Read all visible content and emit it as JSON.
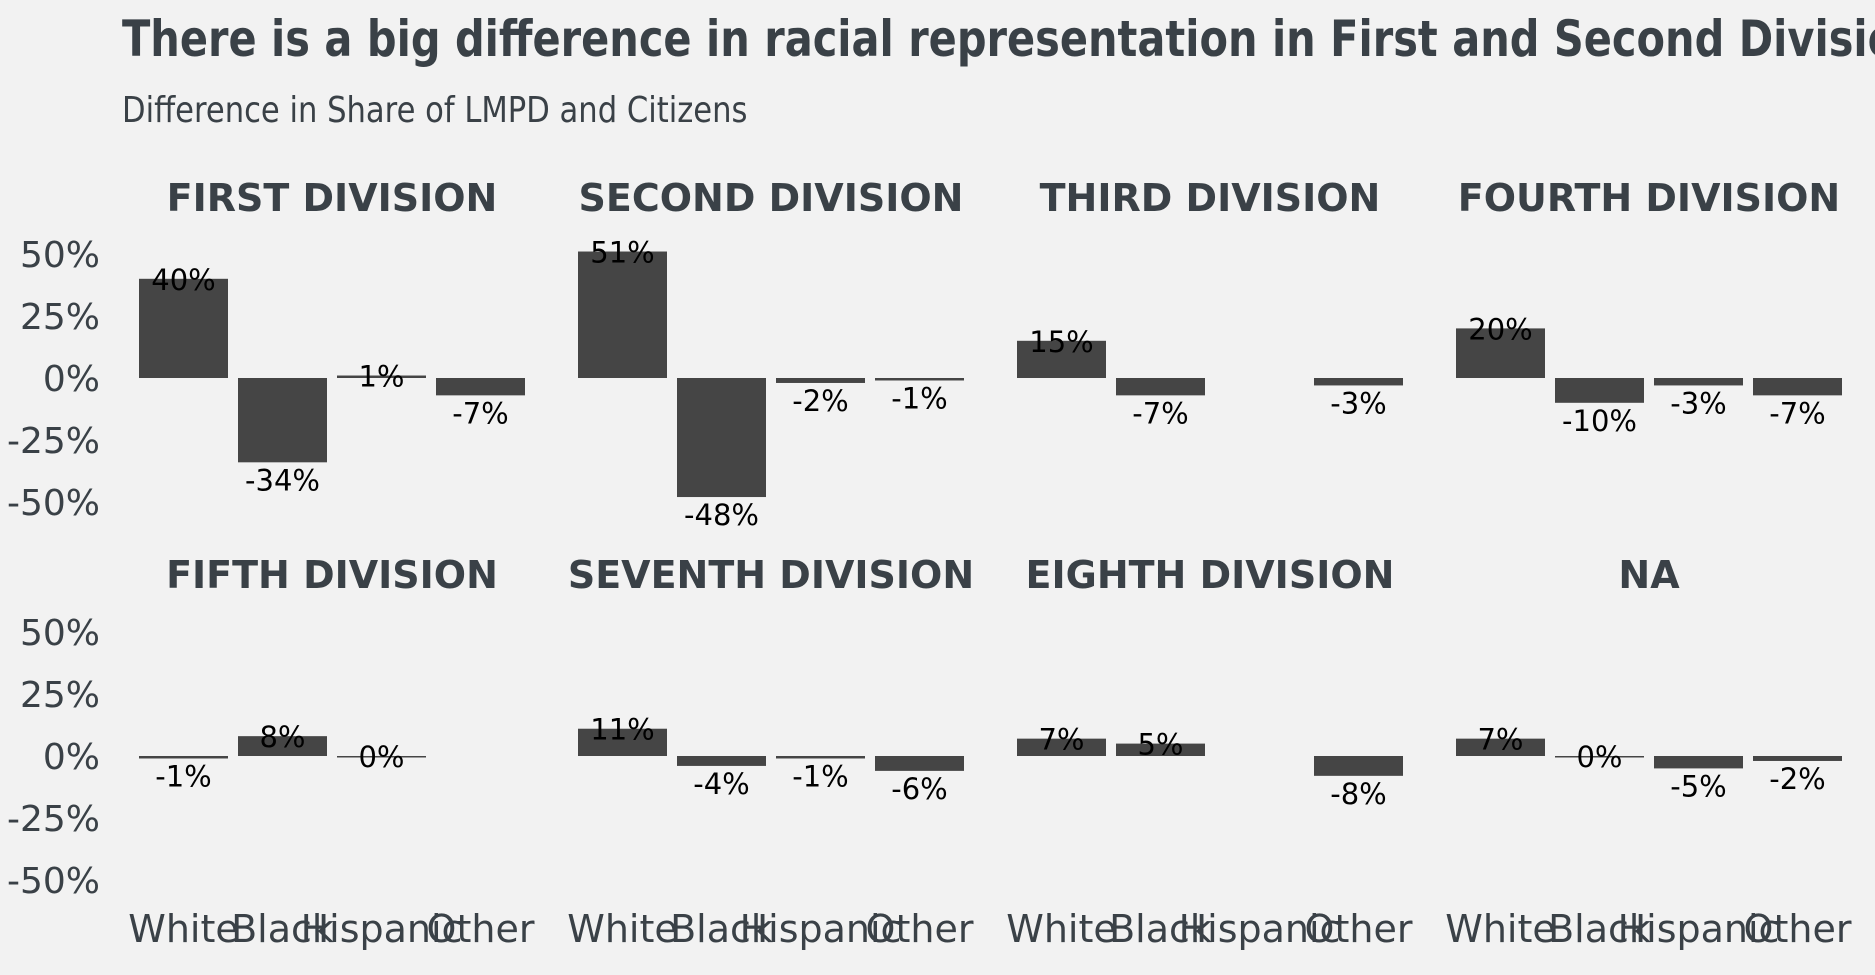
{
  "title": "There is a big difference in racial representation in First and Second Divisio",
  "subtitle": "Difference in Share of LMPD and Citizens",
  "colors": {
    "background": "#f2f2f2",
    "bar": "#454545",
    "text": "#3a4147"
  },
  "chart_data": {
    "type": "bar",
    "facet": "small-multiples",
    "categories": [
      "White",
      "Black",
      "Hispanic",
      "Other"
    ],
    "y_ticks": [
      "50%",
      "25%",
      "0%",
      "-25%",
      "-50%"
    ],
    "y_tick_values": [
      50,
      25,
      0,
      -25,
      -50
    ],
    "ylim": [
      -50,
      50
    ],
    "grid": false,
    "panels": [
      {
        "title": "FIRST DIVISION",
        "values": [
          40,
          -34,
          1,
          -7
        ],
        "labels": [
          "40%",
          "-34%",
          "1%",
          "-7%"
        ]
      },
      {
        "title": "SECOND DIVISION",
        "values": [
          51,
          -48,
          -2,
          -1
        ],
        "labels": [
          "51%",
          "-48%",
          "-2%",
          "-1%"
        ]
      },
      {
        "title": "THIRD DIVISION",
        "values": [
          15,
          -7,
          null,
          -3
        ],
        "labels": [
          "15%",
          "-7%",
          null,
          "-3%"
        ]
      },
      {
        "title": "FOURTH DIVISION",
        "values": [
          20,
          -10,
          -3,
          -7
        ],
        "labels": [
          "20%",
          "-10%",
          "-3%",
          "-7%"
        ]
      },
      {
        "title": "FIFTH DIVISION",
        "values": [
          -1,
          8,
          0,
          null
        ],
        "labels": [
          "-1%",
          "8%",
          "0%",
          null
        ]
      },
      {
        "title": "SEVENTH DIVISION",
        "values": [
          11,
          -4,
          -1,
          -6
        ],
        "labels": [
          "11%",
          "-4%",
          "-1%",
          "-6%"
        ]
      },
      {
        "title": "EIGHTH DIVISION",
        "values": [
          7,
          5,
          null,
          -8
        ],
        "labels": [
          "7%",
          "5%",
          null,
          "-8%"
        ]
      },
      {
        "title": "NA",
        "values": [
          7,
          0,
          -5,
          -2
        ],
        "labels": [
          "7%",
          "0%",
          "-5%",
          "-2%"
        ]
      }
    ]
  }
}
